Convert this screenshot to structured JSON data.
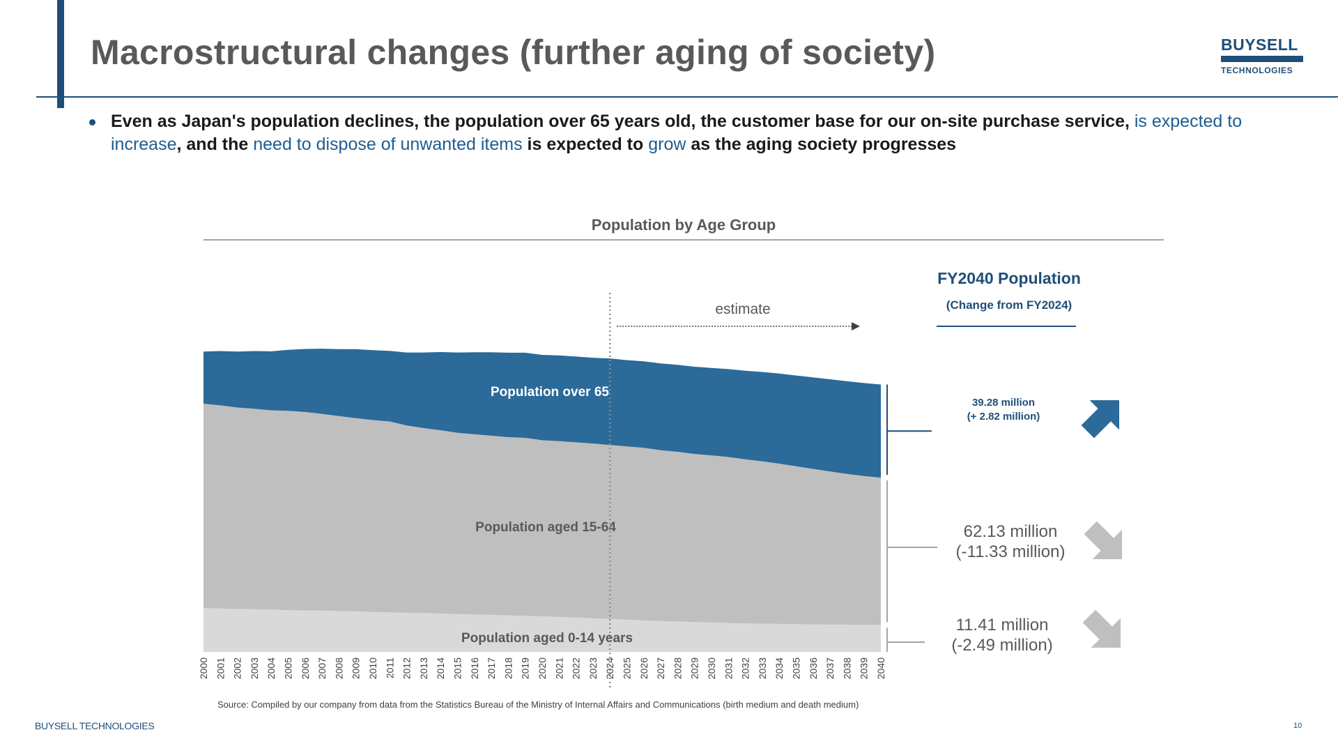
{
  "page": {
    "title": "Macrostructural changes (further aging of society)",
    "logo_line1": "BUYSELL",
    "logo_line2": "TECHNOLOGIES",
    "bullet": [
      {
        "text": "Even as Japan's population declines, the population over 65 years old, the customer base for our on-site purchase service, ",
        "hl": false
      },
      {
        "text": "is expected to increase",
        "hl": true
      },
      {
        "text": ", and the ",
        "hl": false
      },
      {
        "text": "need to dispose of unwanted items",
        "hl": true
      },
      {
        "text": " is expected to ",
        "hl": false
      },
      {
        "text": "grow",
        "hl": true
      },
      {
        "text": " as the aging society progresses",
        "hl": false
      }
    ],
    "source": "Source: Compiled by our company from data from the Statistics Bureau of the Ministry of Internal Affairs and Communications (birth medium and death medium)",
    "footer_brand": "BUYSELL TECHNOLOGIES",
    "page_number": "10"
  },
  "right_panel": {
    "title": "FY2040 Population",
    "subtitle": "(Change from FY2024)",
    "over65": {
      "line1": "39.28 million",
      "line2": "(+ 2.82 million)",
      "arrow": "up-right-arrow"
    },
    "age15_64": {
      "line1": "62.13 million",
      "line2": "(-11.33 million)",
      "arrow": "down-right-arrow"
    },
    "age0_14": {
      "line1": "11.41 million",
      "line2": "(-2.49 million)",
      "arrow": "down-right-arrow"
    }
  },
  "colors": {
    "over65": "#2b6a99",
    "age15_64": "#bfbfbf",
    "age0_14": "#d9d9d9",
    "accent": "#1f4e79"
  },
  "chart_data": {
    "type": "area",
    "title": "Population by Age Group",
    "stacked": true,
    "x": [
      "2000",
      "2001",
      "2002",
      "2003",
      "2004",
      "2005",
      "2006",
      "2007",
      "2008",
      "2009",
      "2010",
      "2011",
      "2012",
      "2013",
      "2014",
      "2015",
      "2016",
      "2017",
      "2018",
      "2019",
      "2020",
      "2021",
      "2022",
      "2023",
      "2024",
      "2025",
      "2026",
      "2027",
      "2028",
      "2029",
      "2030",
      "2031",
      "2032",
      "2033",
      "2034",
      "2035",
      "2036",
      "2037",
      "2038",
      "2039",
      "2040"
    ],
    "series": [
      {
        "name": "Population aged 0-14 years",
        "values": [
          18.5,
          18.3,
          18.1,
          18.0,
          17.9,
          17.6,
          17.5,
          17.4,
          17.2,
          17.1,
          16.8,
          16.7,
          16.5,
          16.4,
          16.2,
          15.9,
          15.8,
          15.6,
          15.4,
          15.2,
          15.0,
          14.8,
          14.5,
          14.2,
          13.9,
          13.6,
          13.3,
          13.0,
          12.8,
          12.6,
          12.4,
          12.2,
          12.0,
          11.9,
          11.8,
          11.7,
          11.6,
          11.5,
          11.5,
          11.4,
          11.4
        ]
      },
      {
        "name": "Population aged 15-64",
        "values": [
          86.2,
          85.7,
          85.0,
          84.6,
          84.0,
          84.1,
          83.7,
          83.0,
          82.3,
          81.5,
          81.0,
          80.5,
          79.0,
          78.0,
          77.3,
          76.5,
          76.0,
          75.6,
          75.2,
          75.1,
          74.3,
          74.1,
          73.9,
          73.7,
          73.4,
          73.1,
          72.8,
          72.1,
          71.6,
          70.9,
          70.5,
          70.0,
          69.2,
          68.5,
          67.6,
          66.6,
          65.6,
          64.6,
          63.6,
          62.8,
          62.1
        ]
      },
      {
        "name": "Population over 65",
        "values": [
          22.0,
          22.9,
          23.6,
          24.3,
          24.9,
          25.7,
          26.6,
          27.5,
          28.2,
          29.1,
          29.5,
          29.8,
          30.8,
          31.9,
          33.0,
          33.9,
          34.6,
          35.2,
          35.6,
          35.9,
          36.0,
          36.2,
          36.2,
          36.2,
          36.5,
          36.4,
          36.5,
          36.6,
          36.7,
          36.8,
          36.9,
          37.1,
          37.4,
          37.7,
          38.0,
          38.3,
          38.6,
          38.9,
          39.1,
          39.2,
          39.3
        ]
      }
    ],
    "xlabel": "",
    "ylabel": "",
    "annotation": {
      "label": "estimate",
      "start": "2024"
    }
  }
}
